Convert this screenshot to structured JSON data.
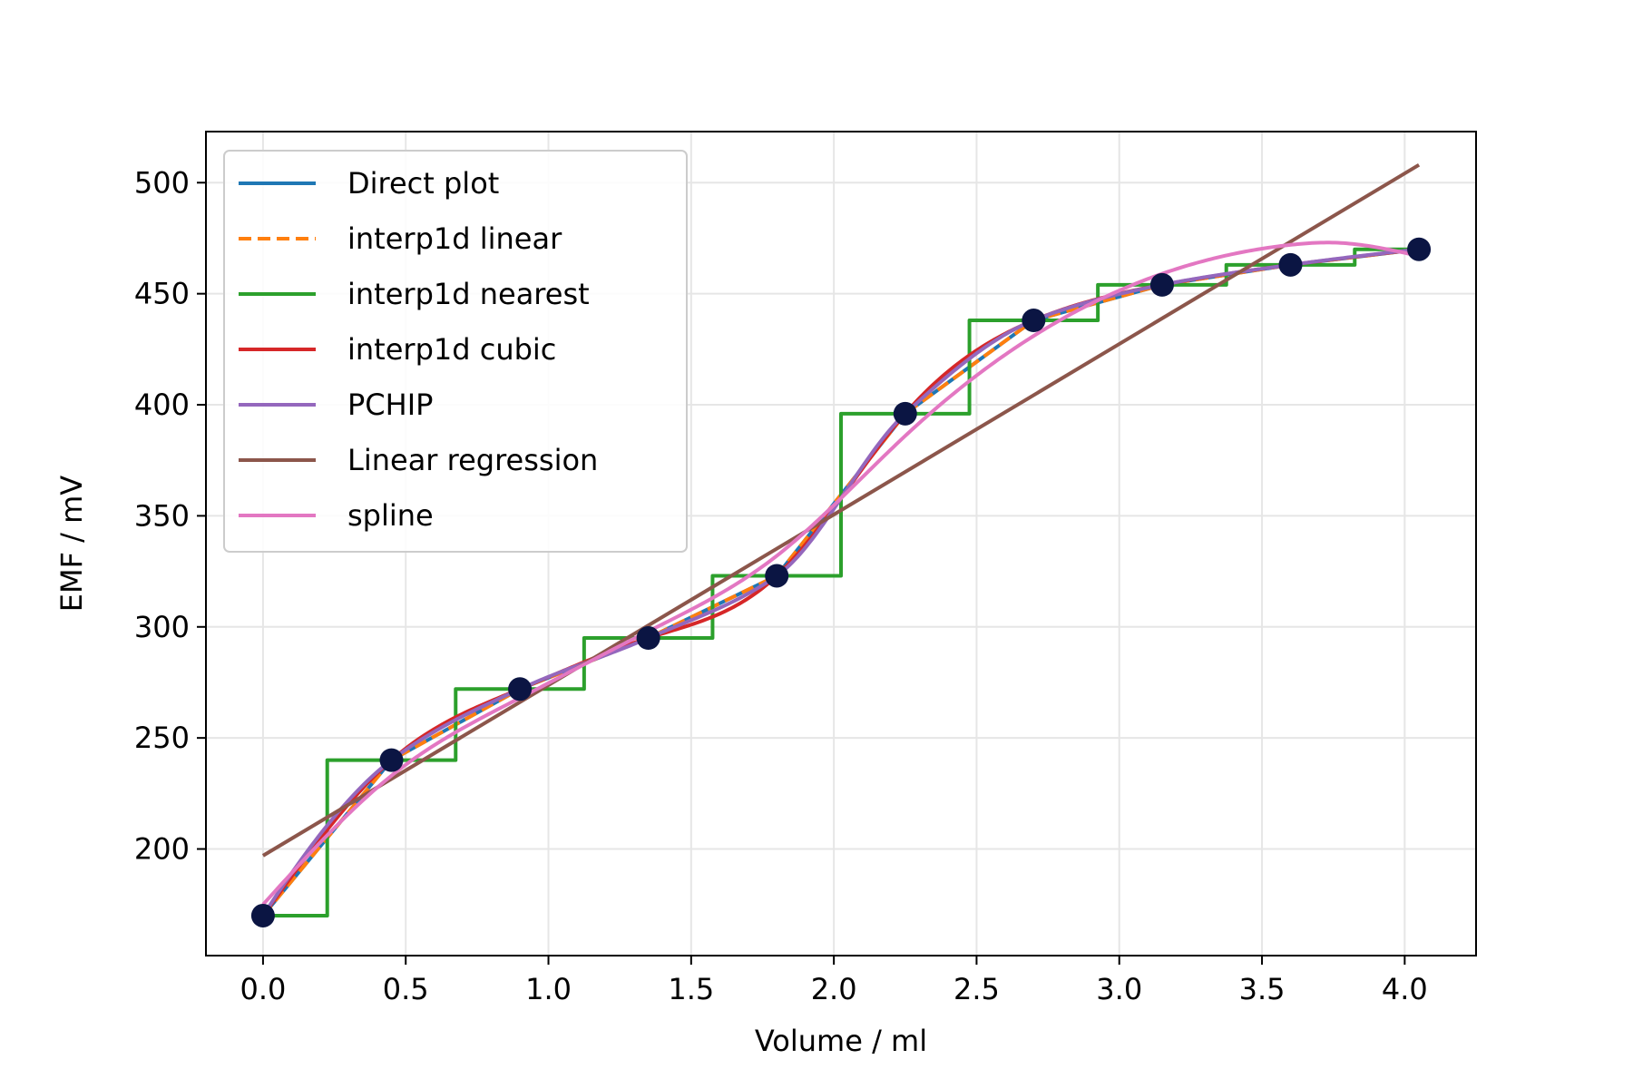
{
  "chart_data": {
    "type": "line",
    "title": "",
    "xlabel": "Volume / ml",
    "ylabel": "EMF / mV",
    "xlim": [
      -0.2,
      4.25
    ],
    "ylim": [
      152,
      523
    ],
    "xticks": [
      0.0,
      0.5,
      1.0,
      1.5,
      2.0,
      2.5,
      3.0,
      3.5,
      4.0
    ],
    "xtick_labels": [
      "0.0",
      "0.5",
      "1.0",
      "1.5",
      "2.0",
      "2.5",
      "3.0",
      "3.5",
      "4.0"
    ],
    "yticks": [
      200,
      250,
      300,
      350,
      400,
      450,
      500
    ],
    "ytick_labels": [
      "200",
      "250",
      "300",
      "350",
      "400",
      "450",
      "500"
    ],
    "grid": true,
    "legend_position": "upper-left",
    "points": {
      "x": [
        0.0,
        0.45,
        0.9,
        1.35,
        1.8,
        2.25,
        2.7,
        3.15,
        3.6,
        4.05
      ],
      "y": [
        170,
        240,
        272,
        295,
        323,
        396,
        438,
        454,
        463,
        470
      ],
      "color": "#0b1543"
    },
    "series": [
      {
        "name": "Direct plot",
        "method": "direct",
        "color": "#1f77b4",
        "dash": "solid"
      },
      {
        "name": "interp1d linear",
        "method": "linear",
        "color": "#ff7f0e",
        "dash": "dashed"
      },
      {
        "name": "interp1d nearest",
        "method": "nearest",
        "color": "#2ca02c",
        "dash": "solid"
      },
      {
        "name": "interp1d cubic",
        "method": "cubic",
        "color": "#d62728",
        "dash": "solid"
      },
      {
        "name": "PCHIP",
        "method": "pchip",
        "color": "#9467bd",
        "dash": "solid"
      },
      {
        "name": "Linear regression",
        "method": "regression",
        "color": "#8c564b",
        "dash": "solid",
        "x": [
          0.0,
          4.05
        ],
        "y": [
          197,
          508
        ]
      },
      {
        "name": "spline",
        "method": "spline",
        "color": "#e377c2",
        "dash": "solid",
        "x": [
          0.0,
          0.45,
          0.9,
          1.35,
          1.8,
          2.25,
          2.7,
          3.15,
          3.6,
          3.75,
          4.05
        ],
        "y": [
          175,
          233,
          268,
          298,
          332,
          386,
          431,
          459,
          472,
          473,
          467
        ]
      }
    ]
  }
}
